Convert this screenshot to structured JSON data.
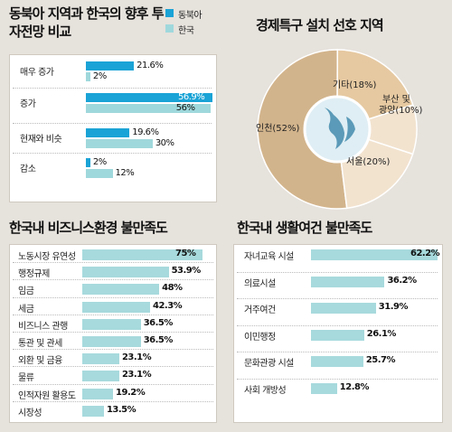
{
  "colors": {
    "northeast": "#1aa3d6",
    "korea": "#9fd8dc",
    "korea_bar": "#a7dadd",
    "pie_fill": "#d2b48c",
    "pie_light": "#f2e3cf",
    "pie_mid": "#e6c9a1"
  },
  "chart_data": [
    {
      "type": "bar",
      "title": "동북아 지역과 한국의 향후 투자전망 비교",
      "categories": [
        "매우 증가",
        "증가",
        "현재와 비슷",
        "감소"
      ],
      "series": [
        {
          "name": "동북아",
          "values": [
            21.6,
            56.9,
            19.6,
            2
          ]
        },
        {
          "name": "한국",
          "values": [
            2,
            56,
            30,
            12
          ]
        }
      ],
      "value_labels": [
        [
          "21.6%",
          "56.9%",
          "19.6%",
          "2%"
        ],
        [
          "2%",
          "56%",
          "30%",
          "12%"
        ]
      ],
      "legend": "top-right"
    },
    {
      "type": "pie",
      "title": "경제특구 설치 선호 지역",
      "slices": [
        {
          "label": "인천",
          "value": 52,
          "text": "(52%)"
        },
        {
          "label": "서울",
          "value": 20,
          "text": "(20%)"
        },
        {
          "label": "부산 및 광양",
          "value": 10,
          "text": "(10%)"
        },
        {
          "label": "기타",
          "value": 18,
          "text": "(18%)"
        }
      ]
    },
    {
      "type": "bar",
      "title": "한국내 비즈니스환경 불만족도",
      "categories": [
        "노동시장 유연성",
        "행정규제",
        "임금",
        "세금",
        "비즈니스 관행",
        "통관 및 관세",
        "외환 및 금융",
        "물류",
        "인적자원 활용도",
        "시장성"
      ],
      "values": [
        75,
        53.9,
        48,
        42.3,
        36.5,
        36.5,
        23.1,
        23.1,
        19.2,
        13.5
      ],
      "value_labels": [
        "75%",
        "53.9%",
        "48%",
        "42.3%",
        "36.5%",
        "36.5%",
        "23.1%",
        "23.1%",
        "19.2%",
        "13.5%"
      ]
    },
    {
      "type": "bar",
      "title": "한국내 생활여건 불만족도",
      "categories": [
        "자녀교육 시설",
        "의료시설",
        "거주여건",
        "이민행정",
        "문화관광 시설",
        "사회 개방성"
      ],
      "values": [
        62.2,
        36.2,
        31.9,
        26.1,
        25.7,
        12.8
      ],
      "value_labels": [
        "62.2%",
        "36.2%",
        "31.9%",
        "26.1%",
        "25.7%",
        "12.8%"
      ]
    }
  ]
}
